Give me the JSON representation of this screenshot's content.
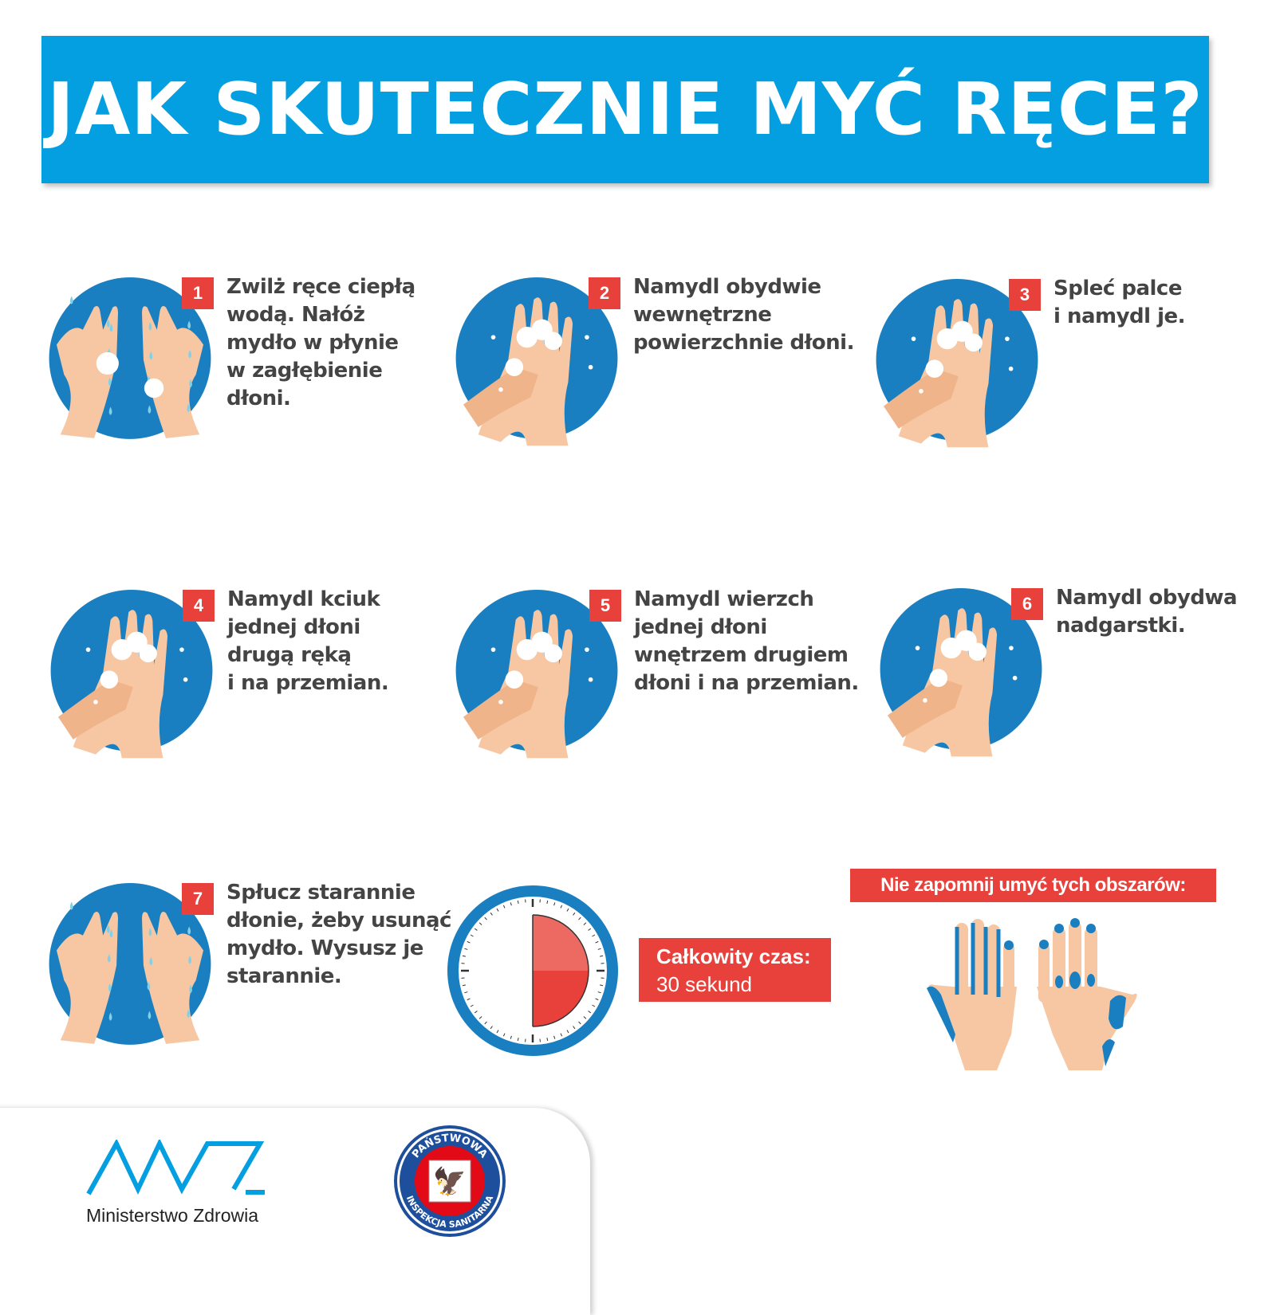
{
  "header": {
    "title": "JAK SKUTECZNIE MYĆ RĘCE?"
  },
  "steps": [
    {
      "number": "1",
      "text": "Zwilż ręce ciepłą\nwodą. Nałóż\nmydło w płynie\nw zagłębienie\ndłoni.",
      "icon": "wet-hands-icon"
    },
    {
      "number": "2",
      "text": "Namydl obydwie\nwewnętrzne\npowierzchnie dłoni.",
      "icon": "rub-palms-icon"
    },
    {
      "number": "3",
      "text": "Spleć palce\ni namydl je.",
      "icon": "interlace-fingers-icon"
    },
    {
      "number": "4",
      "text": "Namydl kciuk\njednej dłoni\ndrugą ręką\ni na przemian.",
      "icon": "thumb-wash-icon"
    },
    {
      "number": "5",
      "text": "Namydl wierzch\njednej dłoni\nwnętrzem drugiem\ndłoni i na przemian.",
      "icon": "back-of-hand-icon"
    },
    {
      "number": "6",
      "text": "Namydl obydwa\nnadgarstki.",
      "icon": "wrist-wash-icon"
    },
    {
      "number": "7",
      "text": "Spłucz starannie\ndłonie, żeby usunąć\nmydło. Wysusz je\nstarannie.",
      "icon": "rinse-hands-icon"
    }
  ],
  "timer": {
    "label": "Całkowity czas:",
    "value": "30 sekund",
    "fraction_shown": 0.5
  },
  "areas": {
    "title": "Nie zapomnij umyć tych obszarów:"
  },
  "footer": {
    "ministry": "Ministerstwo Zdrowia",
    "pis_top": "PAŃSTWOWA",
    "pis_bottom": "INSPEKCJA SANITARNA"
  },
  "colors": {
    "header": "#049fe0",
    "circle": "#1a7fc1",
    "accent_red": "#e8403a",
    "skin": "#f6c7a2",
    "text": "#444444"
  }
}
